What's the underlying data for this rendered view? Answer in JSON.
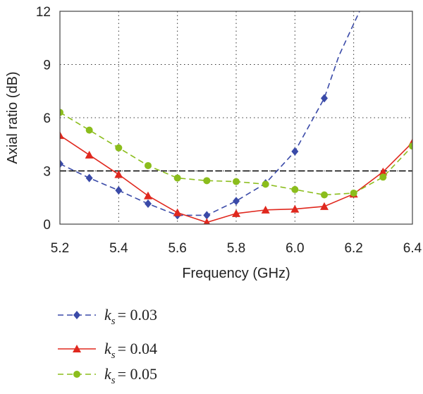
{
  "chart_data": {
    "type": "line",
    "xlabel": "Frequency (GHz)",
    "ylabel": "Axial ratio (dB)",
    "xlim": [
      5.2,
      6.4
    ],
    "ylim": [
      0,
      12
    ],
    "xticks": [
      "5.2",
      "5.4",
      "5.6",
      "5.8",
      "6.0",
      "6.2",
      "6.4"
    ],
    "yticks": [
      "0",
      "3",
      "6",
      "9",
      "12"
    ],
    "grid": true,
    "reference_line": {
      "y": 3,
      "style": "dashed",
      "color": "#000000"
    },
    "legend_placement": "bottom-left, below plot",
    "x": [
      5.2,
      5.3,
      5.4,
      5.5,
      5.6,
      5.7,
      5.8,
      5.9,
      6.0,
      6.1,
      6.2,
      6.3,
      6.4
    ],
    "series": [
      {
        "legend_sub": "s",
        "legend_value": "= 0.03",
        "color": "#3a4aa8",
        "marker": "diamond",
        "dash": "dashed",
        "x": [
          5.2,
          5.3,
          5.4,
          5.5,
          5.6,
          5.7,
          5.8,
          5.9,
          6.0,
          6.1
        ],
        "values": [
          3.4,
          2.6,
          1.9,
          1.15,
          0.5,
          0.5,
          1.3,
          2.3,
          4.1,
          7.1
        ],
        "extension": [
          [
            6.15,
            9.5
          ],
          [
            6.22,
            12.0
          ]
        ]
      },
      {
        "legend_sub": "s",
        "legend_value": "= 0.04",
        "color": "#e0281e",
        "marker": "triangle",
        "dash": "solid",
        "x": [
          5.2,
          5.3,
          5.4,
          5.5,
          5.6,
          5.7,
          5.8,
          5.9,
          6.0,
          6.1,
          6.2,
          6.3,
          6.4
        ],
        "values": [
          5.0,
          3.9,
          2.8,
          1.6,
          0.65,
          0.1,
          0.6,
          0.8,
          0.85,
          1.0,
          1.7,
          2.95,
          4.6
        ]
      },
      {
        "legend_sub": "s",
        "legend_value": "= 0.05",
        "color": "#8bbd1c",
        "marker": "circle",
        "dash": "dashed",
        "x": [
          5.2,
          5.3,
          5.4,
          5.5,
          5.6,
          5.7,
          5.8,
          5.9,
          6.0,
          6.1,
          6.2,
          6.3,
          6.4
        ],
        "values": [
          6.3,
          5.3,
          4.3,
          3.3,
          2.6,
          2.45,
          2.4,
          2.25,
          1.95,
          1.65,
          1.75,
          2.65,
          4.4
        ]
      }
    ]
  }
}
